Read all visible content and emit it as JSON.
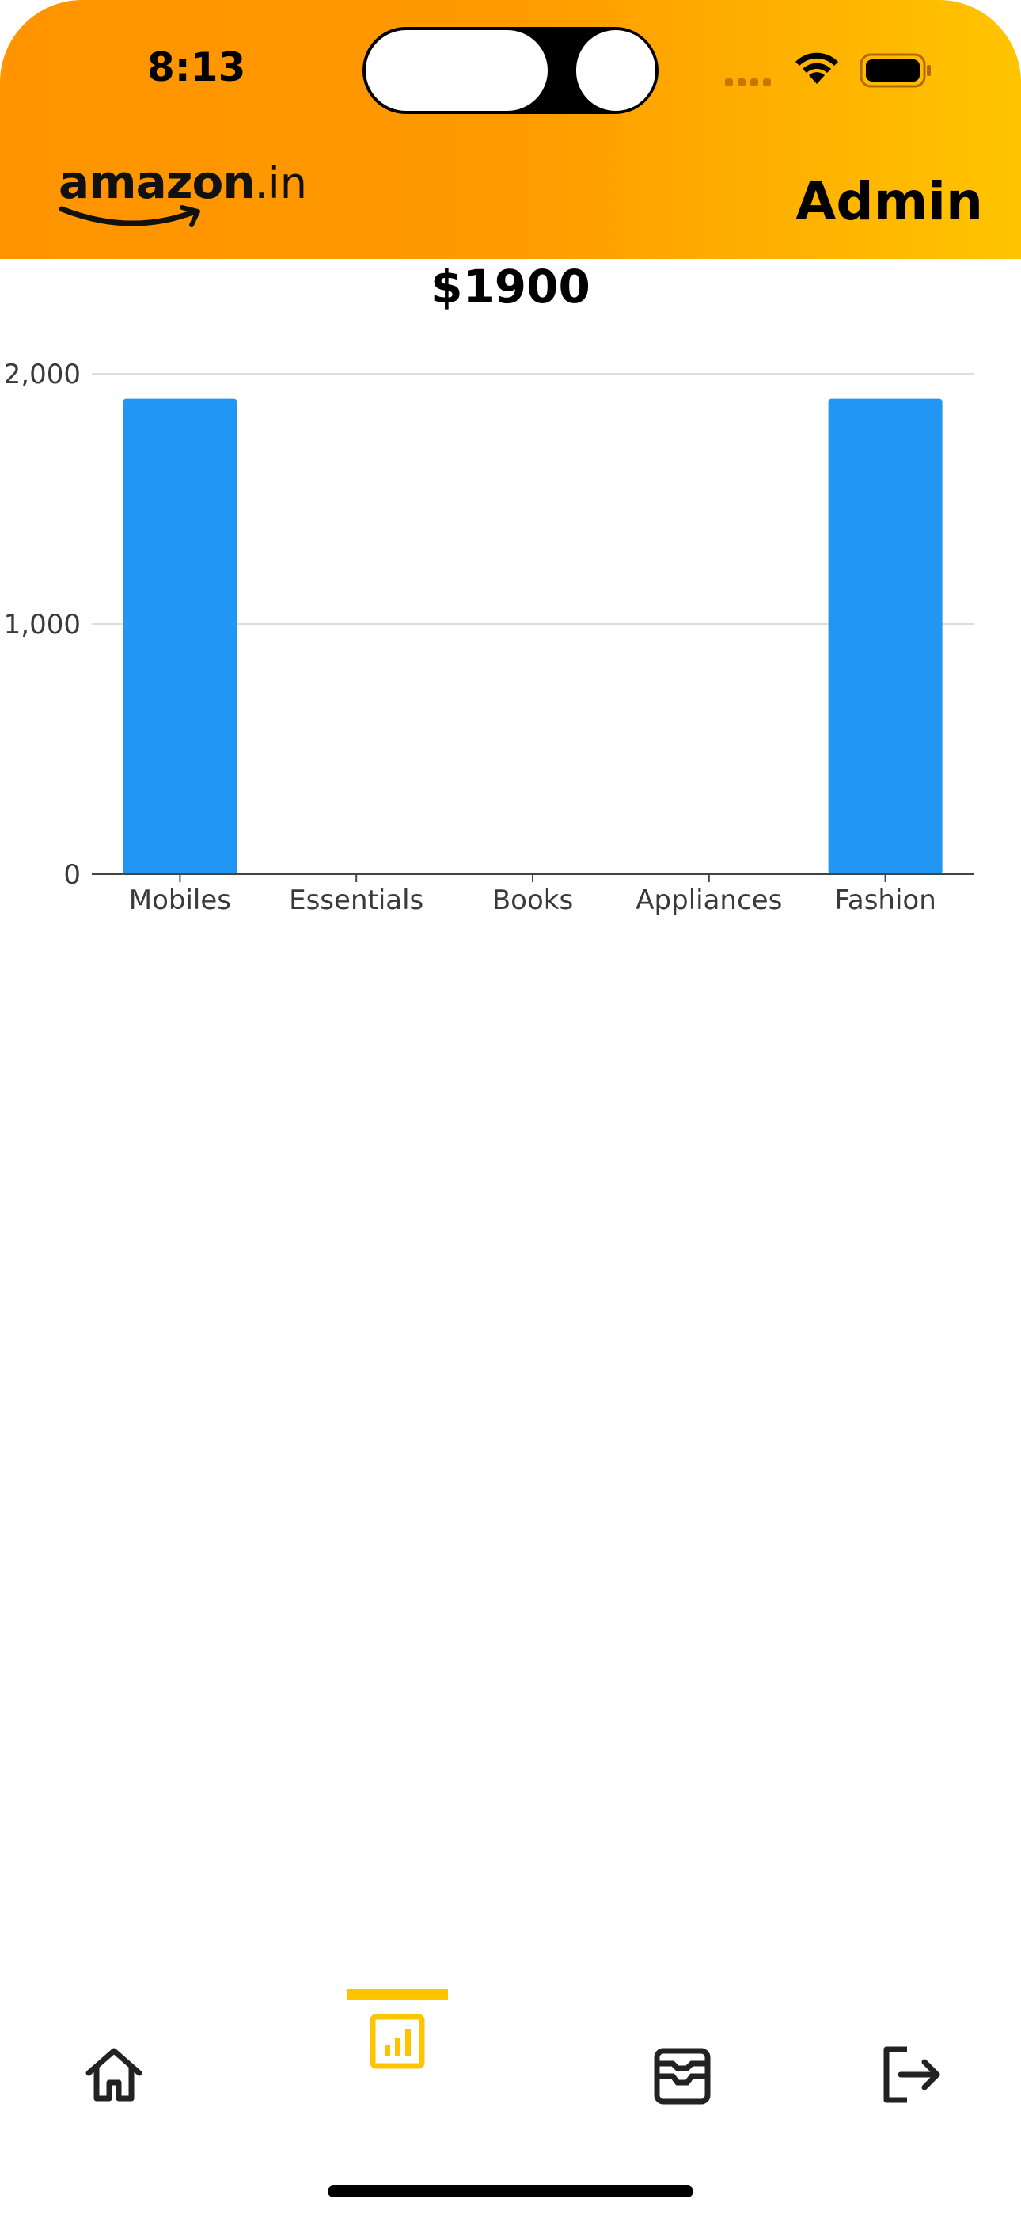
{
  "status_bar": {
    "time": "8:13",
    "icons": [
      "signal-icon",
      "wifi-icon",
      "battery-icon"
    ]
  },
  "header": {
    "logo_text": "amazon",
    "logo_suffix": ".in",
    "role_label": "Admin",
    "gradient_colors": [
      "#ff9400",
      "#ffc400"
    ]
  },
  "summary": {
    "total_earnings": "$1900"
  },
  "chart_data": {
    "type": "bar",
    "categories": [
      "Mobiles",
      "Essentials",
      "Books",
      "Appliances",
      "Fashion"
    ],
    "values": [
      1900,
      0,
      0,
      0,
      1900
    ],
    "ylim": [
      0,
      2000
    ],
    "yticks": [
      0,
      1000,
      2000
    ],
    "ytick_labels": [
      "0",
      "1,000",
      "2,000"
    ],
    "bar_color": "#2196f3",
    "grid": true,
    "title": "",
    "xlabel": "",
    "ylabel": ""
  },
  "bottom_nav": {
    "items": [
      {
        "icon": "home-icon",
        "active": false
      },
      {
        "icon": "analytics-icon",
        "active": true
      },
      {
        "icon": "orders-inbox-icon",
        "active": false
      },
      {
        "icon": "logout-icon",
        "active": false
      }
    ],
    "active_color": "#ffc400",
    "inactive_color": "#222222"
  }
}
